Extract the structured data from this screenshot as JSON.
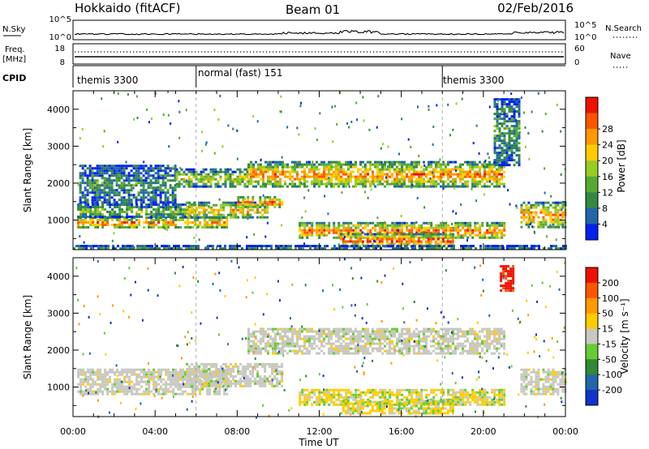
{
  "header": {
    "station": "Hokkaido (fitACF)",
    "beam": "Beam 01",
    "date": "02/Feb/2016"
  },
  "strip": {
    "nsky_label": "N.Sky",
    "nsky_ticks": [
      "10^5",
      "10^0"
    ],
    "nsearch_label": "N.Search",
    "nsearch_ticks": [
      "10^5",
      "10^0"
    ],
    "freq_label": "Freq.",
    "freq_unit": "[MHz]",
    "freq_ticks": [
      "18",
      "8"
    ],
    "nave_label": "Nave",
    "nave_ticks": [
      "60",
      "0"
    ],
    "cpid_label": "CPID",
    "cpid_segments": [
      {
        "label": "themis 3300",
        "start_hour": 0
      },
      {
        "label": "normal (fast) 151",
        "start_hour": 6
      },
      {
        "label": "themis 3300",
        "start_hour": 18
      }
    ]
  },
  "chart_data": [
    {
      "type": "heatmap",
      "name": "power",
      "xlabel": "",
      "ylabel": "Slant Range [km]",
      "xlim": [
        0,
        24
      ],
      "ylim": [
        200,
        4500
      ],
      "yticks": [
        "1000",
        "2000",
        "3000",
        "4000"
      ],
      "colorbar": {
        "label": "Power [dB]",
        "ticks": [
          "4",
          "8",
          "12",
          "16",
          "20",
          "24",
          "28"
        ],
        "colors": [
          "#0022ee",
          "#2266aa",
          "#338844",
          "#55aa33",
          "#99cc22",
          "#ffcc00",
          "#ff9900",
          "#ff5500",
          "#ee1100"
        ]
      },
      "echo_regions": [
        {
          "t0": 0.2,
          "t1": 7.5,
          "r0": 800,
          "r1": 1100,
          "level": 0.82
        },
        {
          "t0": 0.2,
          "t1": 6.0,
          "r0": 1100,
          "r1": 1450,
          "level": 0.45
        },
        {
          "t0": 0.3,
          "t1": 5.0,
          "r0": 1450,
          "r1": 2500,
          "level": 0.3
        },
        {
          "t0": 5.5,
          "t1": 9.5,
          "r0": 1050,
          "r1": 1500,
          "level": 0.7
        },
        {
          "t0": 8.0,
          "t1": 10.2,
          "r0": 1350,
          "r1": 1650,
          "level": 0.85
        },
        {
          "t0": 5.0,
          "t1": 8.5,
          "r0": 1900,
          "r1": 2400,
          "level": 0.55
        },
        {
          "t0": 8.5,
          "t1": 21.0,
          "r0": 1900,
          "r1": 2600,
          "level": 0.8
        },
        {
          "t0": 11.0,
          "t1": 21.0,
          "r0": 500,
          "r1": 950,
          "level": 0.85
        },
        {
          "t0": 13.0,
          "t1": 18.5,
          "r0": 300,
          "r1": 650,
          "level": 0.92
        },
        {
          "t0": 21.8,
          "t1": 24.0,
          "r0": 800,
          "r1": 1500,
          "level": 0.8
        },
        {
          "t0": 20.5,
          "t1": 21.8,
          "r0": 2500,
          "r1": 4300,
          "level": 0.35
        },
        {
          "t0": 0.0,
          "t1": 24.0,
          "r0": 200,
          "r1": 330,
          "level": 0.25
        }
      ]
    },
    {
      "type": "heatmap",
      "name": "velocity",
      "xlabel": "Time UT",
      "ylabel": "Slant Range [km]",
      "xlim": [
        0,
        24
      ],
      "ylim": [
        200,
        4500
      ],
      "xticks": [
        "00:00",
        "04:00",
        "08:00",
        "12:00",
        "16:00",
        "20:00",
        "00:00"
      ],
      "yticks": [
        "1000",
        "2000",
        "3000",
        "4000"
      ],
      "colorbar": {
        "label": "Velocity [m s⁻¹]",
        "ticks": [
          "200",
          "100",
          "50",
          "15",
          "-15",
          "-50",
          "-100",
          "-200"
        ],
        "colors": [
          "#1133cc",
          "#2266aa",
          "#338833",
          "#66cc33",
          "#c8c8c0",
          "#ffcc00",
          "#ff9900",
          "#ff5500",
          "#ee1100"
        ]
      },
      "echo_regions": [
        {
          "t0": 0.2,
          "t1": 7.5,
          "r0": 800,
          "r1": 1500,
          "level": 0.45
        },
        {
          "t0": 5.5,
          "t1": 10.2,
          "r0": 1050,
          "r1": 1650,
          "level": 0.45
        },
        {
          "t0": 8.5,
          "t1": 21.0,
          "r0": 1900,
          "r1": 2600,
          "level": 0.45
        },
        {
          "t0": 11.0,
          "t1": 21.0,
          "r0": 500,
          "r1": 950,
          "level": 0.55
        },
        {
          "t0": 13.0,
          "t1": 18.5,
          "r0": 300,
          "r1": 650,
          "level": 0.6
        },
        {
          "t0": 21.8,
          "t1": 24.0,
          "r0": 800,
          "r1": 1500,
          "level": 0.45
        },
        {
          "t0": 20.8,
          "t1": 21.5,
          "r0": 3600,
          "r1": 4300,
          "level": 0.92
        }
      ]
    }
  ]
}
